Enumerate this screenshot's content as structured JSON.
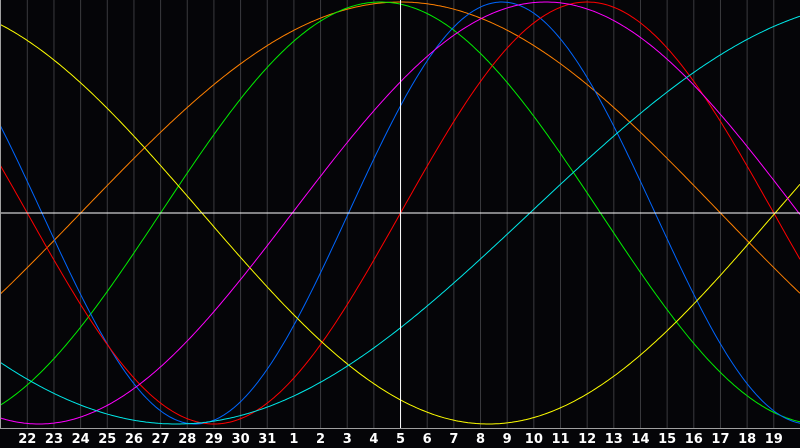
{
  "chart_data": {
    "type": "line",
    "categories": [
      "22",
      "23",
      "24",
      "25",
      "26",
      "27",
      "28",
      "29",
      "30",
      "31",
      "1",
      "2",
      "3",
      "4",
      "5",
      "6",
      "7",
      "8",
      "9",
      "10",
      "11",
      "12",
      "13",
      "14",
      "15",
      "16",
      "17",
      "18",
      "19"
    ],
    "current_day": "5",
    "ylim": [
      -1,
      1
    ],
    "grid": true,
    "background": "#050508",
    "series": [
      {
        "color": "#ff8000",
        "period_days": 48,
        "peak_at_category_index": 14.0
      },
      {
        "color": "#00ee00",
        "period_days": 33,
        "peak_at_category_index": 13.25
      },
      {
        "color": "#0066ff",
        "period_days": 23,
        "peak_at_category_index": 17.8
      },
      {
        "color": "#ff0000",
        "period_days": 28,
        "peak_at_category_index": 21.0
      },
      {
        "color": "#ffff00",
        "period_days": 43,
        "peak_at_category_index": -4.2
      },
      {
        "color": "#ff00ff",
        "period_days": 38,
        "peak_at_category_index": 19.44
      },
      {
        "color": "#00e8e8",
        "period_days": 53,
        "peak_at_category_index": 32.1
      }
    ]
  }
}
